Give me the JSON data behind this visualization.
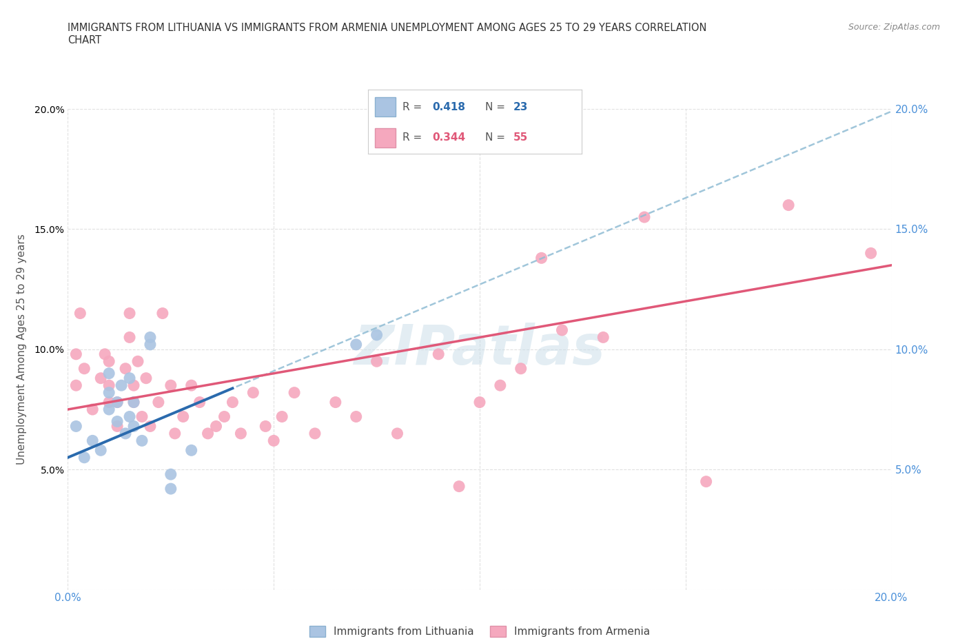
{
  "title_line1": "IMMIGRANTS FROM LITHUANIA VS IMMIGRANTS FROM ARMENIA UNEMPLOYMENT AMONG AGES 25 TO 29 YEARS CORRELATION",
  "title_line2": "CHART",
  "source": "Source: ZipAtlas.com",
  "ylabel": "Unemployment Among Ages 25 to 29 years",
  "xlim": [
    0.0,
    0.2
  ],
  "ylim": [
    0.0,
    0.2
  ],
  "xticks": [
    0.0,
    0.05,
    0.1,
    0.15,
    0.2
  ],
  "yticks": [
    0.0,
    0.05,
    0.1,
    0.15,
    0.2
  ],
  "watermark": "ZIPatlas",
  "lithuania_color": "#aac4e2",
  "armenia_color": "#f5a8be",
  "lithuania_line_color": "#2a6aad",
  "armenia_line_color": "#e05878",
  "dashed_color": "#90bcd4",
  "R_lithuania": 0.418,
  "N_lithuania": 23,
  "R_armenia": 0.344,
  "N_armenia": 55,
  "lith_x": [
    0.002,
    0.004,
    0.006,
    0.008,
    0.01,
    0.01,
    0.01,
    0.012,
    0.012,
    0.013,
    0.014,
    0.015,
    0.015,
    0.016,
    0.016,
    0.018,
    0.02,
    0.02,
    0.025,
    0.025,
    0.03,
    0.07,
    0.075
  ],
  "lith_y": [
    0.068,
    0.055,
    0.062,
    0.058,
    0.075,
    0.082,
    0.09,
    0.07,
    0.078,
    0.085,
    0.065,
    0.072,
    0.088,
    0.068,
    0.078,
    0.062,
    0.102,
    0.105,
    0.048,
    0.042,
    0.058,
    0.102,
    0.106
  ],
  "arm_x": [
    0.002,
    0.002,
    0.003,
    0.004,
    0.006,
    0.008,
    0.009,
    0.01,
    0.01,
    0.01,
    0.012,
    0.012,
    0.014,
    0.015,
    0.015,
    0.016,
    0.016,
    0.017,
    0.018,
    0.019,
    0.02,
    0.022,
    0.023,
    0.025,
    0.026,
    0.028,
    0.03,
    0.032,
    0.034,
    0.036,
    0.038,
    0.04,
    0.042,
    0.045,
    0.048,
    0.05,
    0.052,
    0.055,
    0.06,
    0.065,
    0.07,
    0.075,
    0.08,
    0.09,
    0.095,
    0.1,
    0.105,
    0.11,
    0.115,
    0.12,
    0.13,
    0.14,
    0.155,
    0.175,
    0.195
  ],
  "arm_y": [
    0.085,
    0.098,
    0.115,
    0.092,
    0.075,
    0.088,
    0.098,
    0.078,
    0.085,
    0.095,
    0.068,
    0.078,
    0.092,
    0.105,
    0.115,
    0.085,
    0.078,
    0.095,
    0.072,
    0.088,
    0.068,
    0.078,
    0.115,
    0.085,
    0.065,
    0.072,
    0.085,
    0.078,
    0.065,
    0.068,
    0.072,
    0.078,
    0.065,
    0.082,
    0.068,
    0.062,
    0.072,
    0.082,
    0.065,
    0.078,
    0.072,
    0.095,
    0.065,
    0.098,
    0.043,
    0.078,
    0.085,
    0.092,
    0.138,
    0.108,
    0.105,
    0.155,
    0.045,
    0.16,
    0.14
  ],
  "background_color": "#ffffff",
  "grid_color": "#e0e0e0",
  "tick_color": "#4a90d9",
  "text_color": "#333333"
}
